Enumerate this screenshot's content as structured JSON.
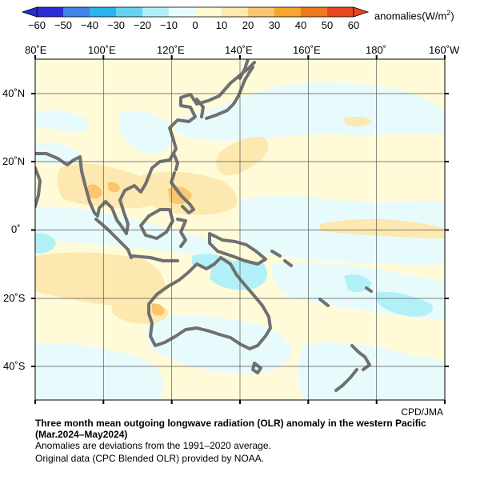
{
  "colorbar": {
    "ticks": [
      "−60",
      "−50",
      "−40",
      "−30",
      "−20",
      "−10",
      "0",
      "10",
      "20",
      "30",
      "40",
      "50",
      "60"
    ],
    "unit_prefix": "anomalies(W/m",
    "unit_sup": "2",
    "unit_suffix": ")",
    "colors": [
      "#2b2bd6",
      "#3f82e8",
      "#29b4ef",
      "#63d3f4",
      "#b2f0f8",
      "#e8fbfc",
      "#fffad3",
      "#fde8b0",
      "#fbc56f",
      "#f6a52f",
      "#ef7a1d",
      "#e8451c"
    ]
  },
  "axes": {
    "lon_labels": [
      "80˚E",
      "100˚E",
      "120˚E",
      "140˚E",
      "160˚E",
      "180˚",
      "160˚W"
    ],
    "lat_labels": [
      "40˚N",
      "20˚N",
      "0˚",
      "20˚S",
      "40˚S"
    ]
  },
  "map": {
    "land_outline_color": "#707070",
    "grid_color": "#555555"
  },
  "credit": "CPD/JMA",
  "caption": {
    "title": "Three month mean outgoing longwave radiation (OLR) anomaly in the western Pacific (Mar.2024–May2024)",
    "note1": "Anomalies are deviations from the 1991–2020 average.",
    "note2": "Original data (CPC Blended OLR) provided by NOAA."
  }
}
